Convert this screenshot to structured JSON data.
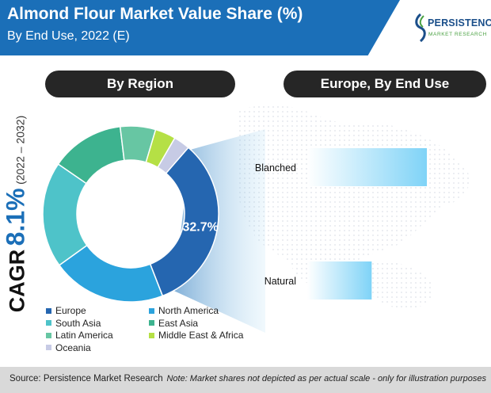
{
  "header": {
    "title": "Almond Flour Market Value Share (%)",
    "subtitle": "By End Use, 2022 (E)"
  },
  "logo": {
    "name": "PERSISTENCE",
    "tagline": "MARKET RESEARCH"
  },
  "cagr": {
    "label": "CAGR",
    "value": "8.1%",
    "period": "(2022 – 2032)"
  },
  "colors": {
    "brand_blue": "#1b6fb8",
    "pill_dark": "#262626",
    "footer_gray": "#d9d9d9"
  },
  "chart_data": [
    {
      "type": "pie",
      "variant": "donut",
      "title": "By Region",
      "categories": [
        "Europe",
        "North America",
        "South Asia",
        "East Asia",
        "Latin America",
        "Middle East & Africa",
        "Oceania"
      ],
      "values": [
        32.7,
        21,
        19.5,
        13.5,
        6.5,
        3.8,
        3
      ],
      "colors": [
        "#2566b0",
        "#2ba3dd",
        "#4ec3c9",
        "#3db38f",
        "#67c6a3",
        "#b5e045",
        "#c7cbe5"
      ],
      "data_labels": [
        {
          "category": "Europe",
          "text": "32.7%"
        }
      ],
      "legend_position": "bottom"
    },
    {
      "type": "bar",
      "orientation": "horizontal",
      "title": "Europe, By End Use",
      "categories": [
        "Blanched",
        "Natural"
      ],
      "values": [
        65,
        35
      ],
      "axis_visible": false,
      "grid": false
    }
  ],
  "footer": {
    "source": "Source: Persistence Market Research",
    "note": "Note: Market shares not depicted as per actual scale - only for illustration purposes"
  }
}
